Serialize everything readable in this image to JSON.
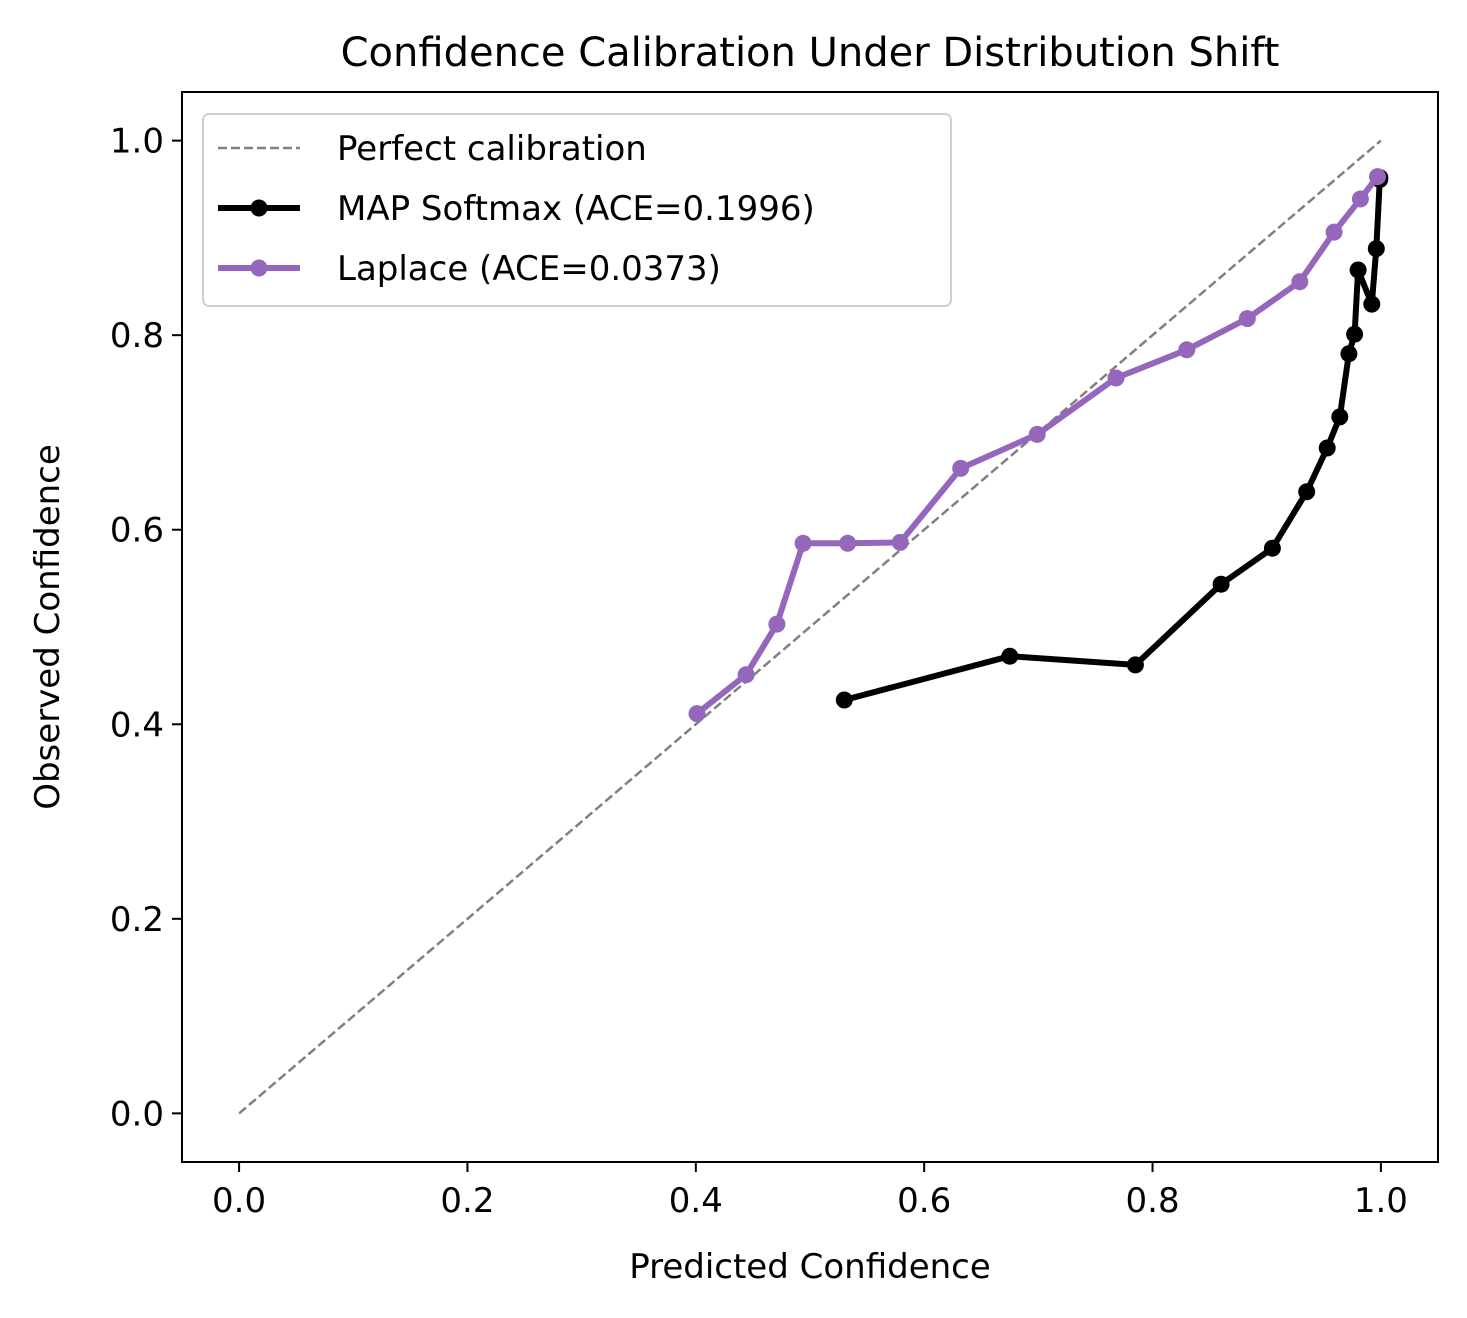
{
  "chart_data": {
    "type": "line",
    "title": "Confidence Calibration Under Distribution Shift",
    "xlabel": "Predicted Confidence",
    "ylabel": "Observed Confidence",
    "xlim": [
      -0.05,
      1.05
    ],
    "ylim": [
      -0.05,
      1.05
    ],
    "xticks": [
      0.0,
      0.2,
      0.4,
      0.6,
      0.8,
      1.0
    ],
    "yticks": [
      0.0,
      0.2,
      0.4,
      0.6,
      0.8,
      1.0
    ],
    "xtick_labels": [
      "0.0",
      "0.2",
      "0.4",
      "0.6",
      "0.8",
      "1.0"
    ],
    "ytick_labels": [
      "0.0",
      "0.2",
      "0.4",
      "0.6",
      "0.8",
      "1.0"
    ],
    "grid": false,
    "legend_position": "upper-left",
    "series": [
      {
        "name": "Perfect calibration",
        "style": "dashed",
        "color": "#808080",
        "markers": false,
        "x": [
          0.0,
          1.0
        ],
        "y": [
          0.0,
          1.0
        ]
      },
      {
        "name": "MAP Softmax  (ACE=0.1996)",
        "style": "solid",
        "color": "#000000",
        "markers": true,
        "x": [
          0.53,
          0.675,
          0.785,
          0.86,
          0.905,
          0.935,
          0.953,
          0.964,
          0.972,
          0.977,
          0.98,
          0.992,
          0.996,
          0.999,
          0.999
        ],
        "y": [
          0.425,
          0.47,
          0.461,
          0.544,
          0.581,
          0.639,
          0.684,
          0.716,
          0.781,
          0.801,
          0.867,
          0.832,
          0.889,
          0.96,
          0.962
        ]
      },
      {
        "name": "Laplace  (ACE=0.0373)",
        "style": "solid",
        "color": "#9467bd",
        "markers": true,
        "x": [
          0.401,
          0.444,
          0.471,
          0.494,
          0.533,
          0.579,
          0.632,
          0.699,
          0.768,
          0.83,
          0.883,
          0.929,
          0.959,
          0.982,
          0.997
        ],
        "y": [
          0.411,
          0.451,
          0.503,
          0.586,
          0.586,
          0.587,
          0.663,
          0.698,
          0.756,
          0.785,
          0.817,
          0.855,
          0.906,
          0.94,
          0.963
        ]
      }
    ]
  }
}
